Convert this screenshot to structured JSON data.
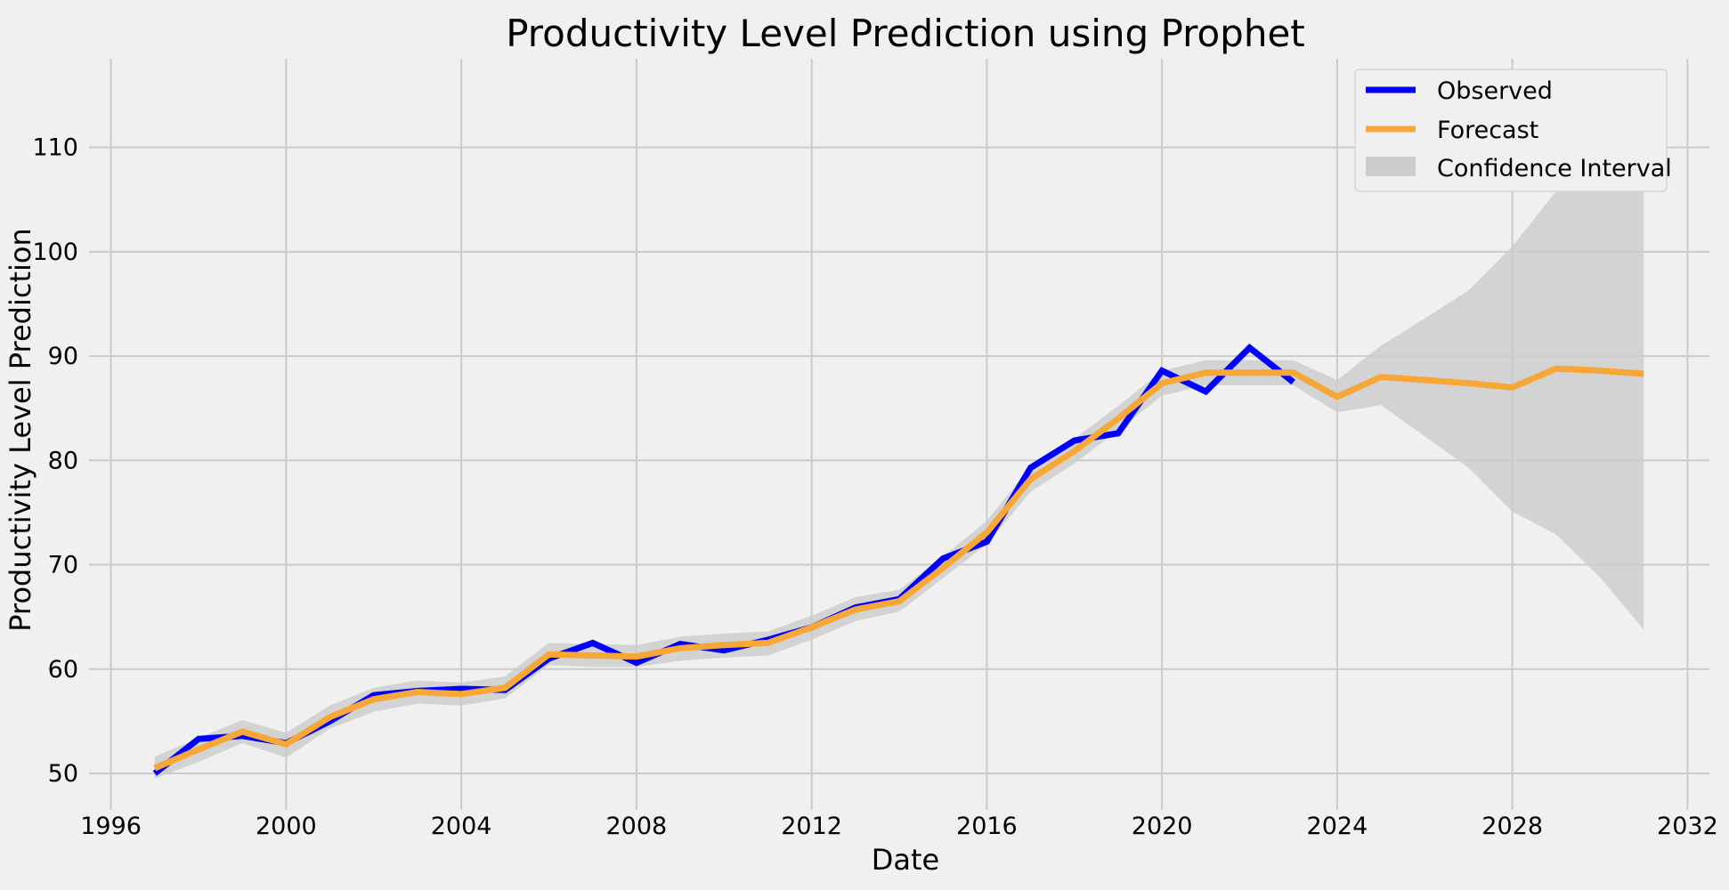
{
  "chart_data": {
    "type": "line",
    "title": "Productivity Level Prediction using Prophet",
    "xlabel": "Date",
    "ylabel": "Productivity Level Prediction",
    "xlim": [
      1995.5,
      2032.5
    ],
    "ylim": [
      46.5,
      118.5
    ],
    "x_ticks": [
      1996,
      2000,
      2004,
      2008,
      2012,
      2016,
      2020,
      2024,
      2028,
      2032
    ],
    "y_ticks": [
      50,
      60,
      70,
      80,
      90,
      100,
      110
    ],
    "grid": true,
    "legend_position": "top-right",
    "colors": {
      "observed": "#0000ff",
      "forecast": "#f7a736",
      "interval": "#cccccc",
      "background": "#f0f0f0",
      "grid": "#cbcbcb"
    },
    "series": [
      {
        "name": "Observed",
        "x": [
          1997,
          1998,
          1999,
          2000,
          2001,
          2002,
          2003,
          2004,
          2005,
          2006,
          2007,
          2008,
          2009,
          2010,
          2011,
          2012,
          2013,
          2014,
          2015,
          2016,
          2017,
          2018,
          2019,
          2020,
          2021,
          2022,
          2023
        ],
        "values": [
          50.0,
          53.3,
          53.6,
          52.9,
          55.0,
          57.5,
          57.9,
          58.1,
          58.0,
          61.0,
          62.5,
          60.6,
          62.4,
          61.8,
          62.8,
          64.0,
          65.9,
          66.7,
          70.6,
          72.2,
          79.3,
          81.9,
          82.6,
          88.6,
          86.6,
          90.8,
          87.5
        ]
      },
      {
        "name": "Forecast",
        "x": [
          1997,
          1998,
          1999,
          2000,
          2001,
          2002,
          2003,
          2004,
          2005,
          2006,
          2007,
          2008,
          2009,
          2010,
          2011,
          2012,
          2013,
          2014,
          2015,
          2016,
          2017,
          2018,
          2019,
          2020,
          2021,
          2022,
          2023,
          2024,
          2025,
          2026,
          2027,
          2028,
          2029,
          2030,
          2031
        ],
        "values": [
          50.5,
          52.3,
          54.0,
          52.8,
          55.4,
          57.1,
          57.8,
          57.6,
          58.2,
          61.4,
          61.3,
          61.2,
          62.0,
          62.3,
          62.5,
          64.0,
          65.7,
          66.5,
          69.7,
          73.1,
          78.2,
          80.9,
          84.0,
          87.4,
          88.4,
          88.4,
          88.4,
          86.1,
          88.0,
          87.7,
          87.4,
          87.0,
          88.8,
          88.6,
          88.3
        ]
      },
      {
        "name": "Confidence Interval",
        "x": [
          1997,
          1998,
          1999,
          2000,
          2001,
          2002,
          2003,
          2004,
          2005,
          2006,
          2007,
          2008,
          2009,
          2010,
          2011,
          2012,
          2013,
          2014,
          2015,
          2016,
          2017,
          2018,
          2019,
          2020,
          2021,
          2022,
          2023,
          2024,
          2025,
          2026,
          2027,
          2028,
          2029,
          2030,
          2031
        ],
        "lower": [
          49.5,
          51.1,
          52.9,
          51.5,
          54.3,
          55.9,
          56.7,
          56.5,
          57.2,
          60.4,
          60.2,
          60.2,
          60.8,
          61.1,
          61.3,
          62.8,
          64.6,
          65.5,
          68.7,
          72.0,
          77.0,
          79.7,
          82.9,
          86.2,
          87.2,
          87.2,
          87.2,
          84.6,
          85.3,
          82.3,
          79.3,
          75.1,
          72.9,
          68.8,
          63.8
        ],
        "upper": [
          51.6,
          53.4,
          55.1,
          53.9,
          56.5,
          58.2,
          58.9,
          58.7,
          59.3,
          62.5,
          62.4,
          62.3,
          63.1,
          63.4,
          63.6,
          65.1,
          66.9,
          67.6,
          70.8,
          74.2,
          79.4,
          82.1,
          85.2,
          88.6,
          89.6,
          89.6,
          89.6,
          87.7,
          91.0,
          93.6,
          96.3,
          100.5,
          105.8,
          111.7,
          115.6
        ]
      }
    ]
  }
}
